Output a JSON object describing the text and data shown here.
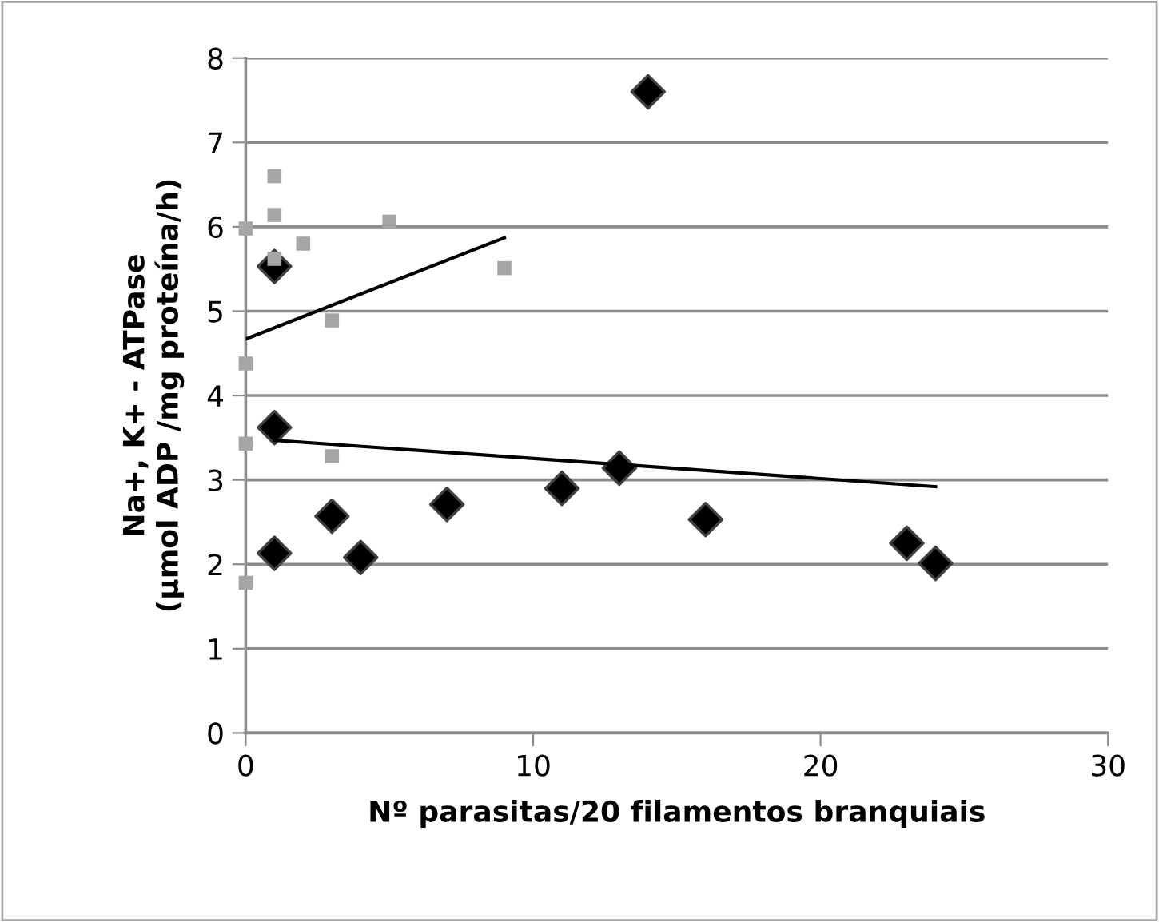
{
  "chart_data": {
    "type": "scatter",
    "xlabel": "Nº parasitas/20 filamentos branquiais",
    "ylabel": "Na+, K+ - ATPase\n(µmol ADP /mg proteína/h)",
    "series": [
      {
        "color": "#a6a6a6",
        "marker": "square",
        "x": [
          0,
          1,
          1,
          1,
          2,
          5,
          9,
          3,
          0,
          0,
          3,
          0
        ],
        "values": [
          5.98,
          6.6,
          6.14,
          5.62,
          5.8,
          6.06,
          5.51,
          4.89,
          4.38,
          3.43,
          3.28,
          1.78
        ]
      },
      {
        "color": "#000000",
        "marker": "diamond",
        "x": [
          1,
          14,
          1,
          13,
          3,
          1,
          4,
          7,
          11,
          16,
          23,
          24
        ],
        "values": [
          5.53,
          7.6,
          3.62,
          3.14,
          2.57,
          2.13,
          2.08,
          2.71,
          2.9,
          2.53,
          2.25,
          2.01
        ]
      },
      {
        "type": "line",
        "color": "#000000",
        "marker": "none",
        "x": [
          0,
          9
        ],
        "values": [
          4.67,
          5.87
        ]
      },
      {
        "type": "line",
        "color": "#000000",
        "marker": "none",
        "x": [
          1,
          24
        ],
        "values": [
          3.47,
          2.92
        ]
      }
    ],
    "xlim": [
      0,
      30
    ],
    "xticks": [
      0,
      10,
      20,
      30
    ],
    "ylim": [
      0,
      8
    ],
    "yticks": [
      0,
      1,
      2,
      3,
      4,
      5,
      6,
      7,
      8
    ],
    "grid": "y",
    "legend": false
  }
}
